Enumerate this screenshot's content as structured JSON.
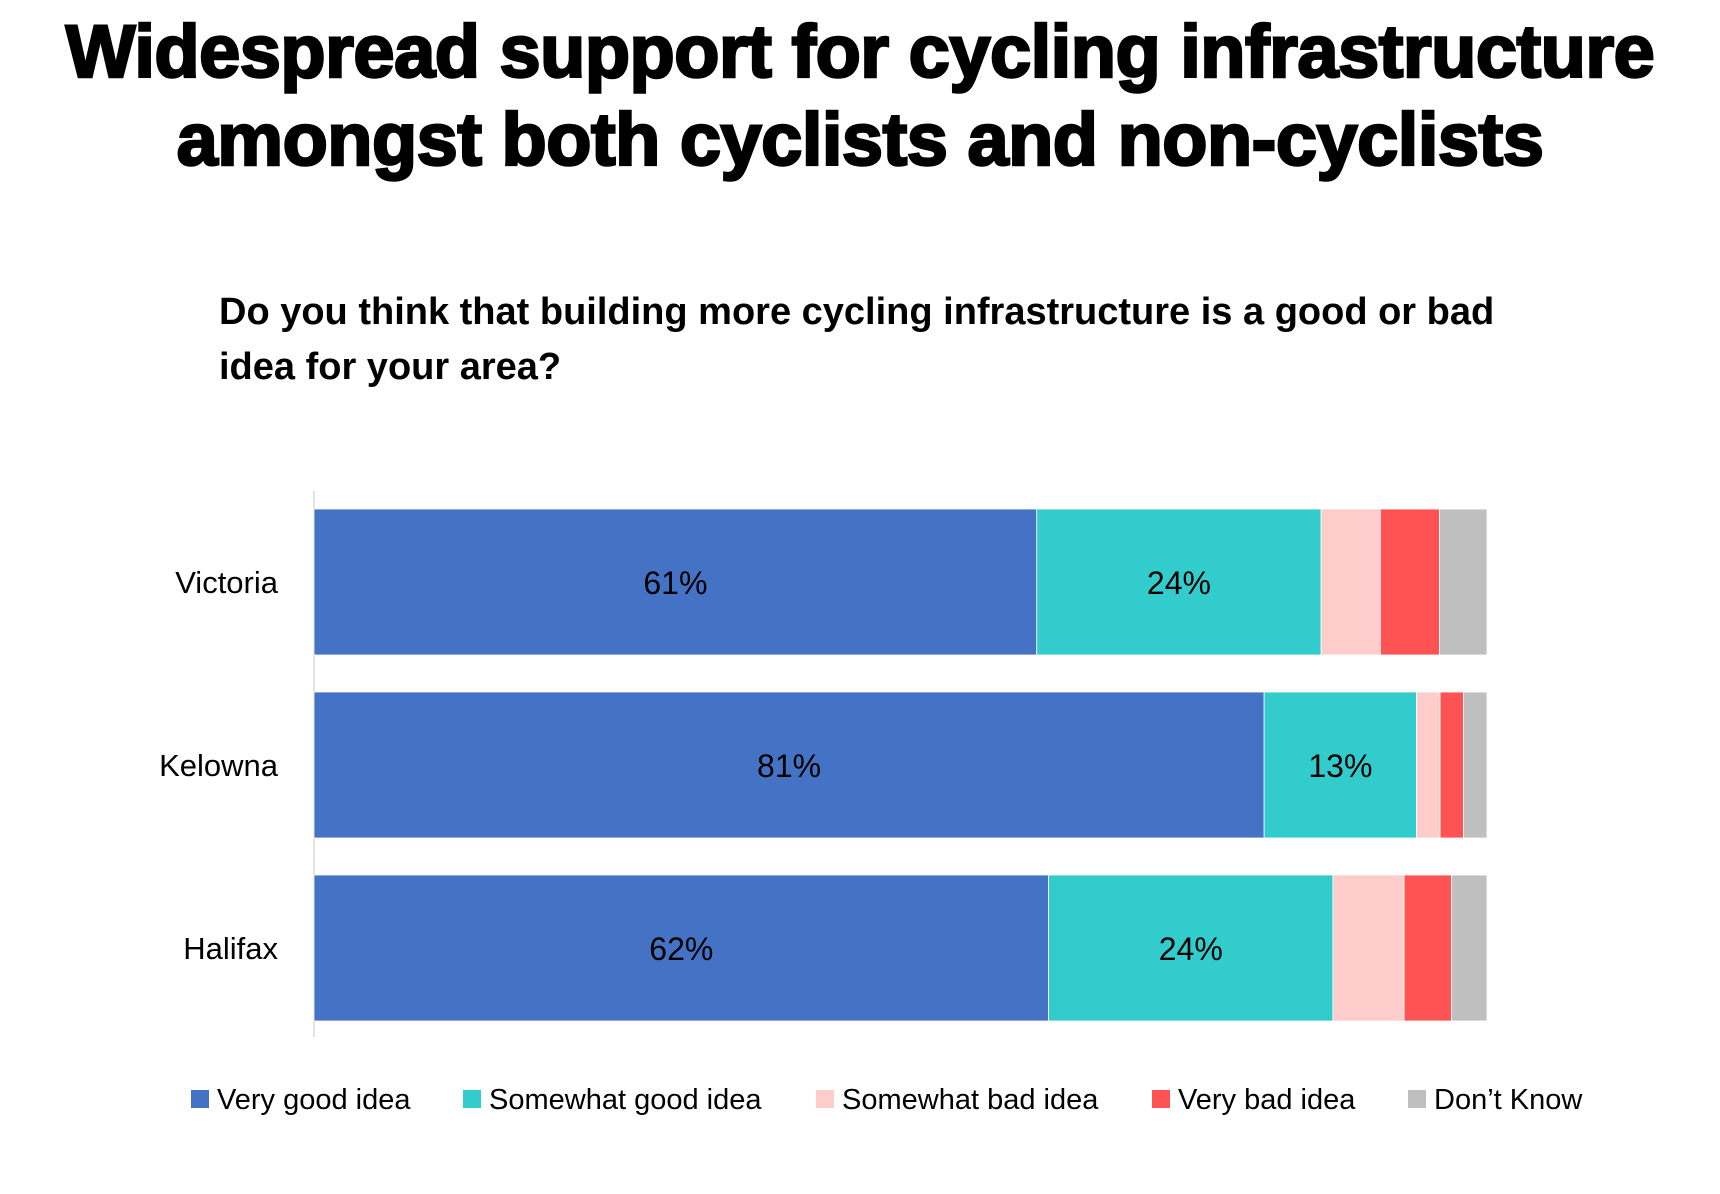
{
  "chart_data": {
    "type": "bar",
    "orientation": "horizontal",
    "stacked": true,
    "title": "Widespread support for cycling infrastructure amongst both cyclists and non-cyclists",
    "title_lines": [
      "Widespread support for cycling infrastructure",
      "amongst both cyclists and non-cyclists"
    ],
    "subtitle": "Do you think that building more cycling infrastructure is a good or bad idea for your area?",
    "categories": [
      "Victoria",
      "Kelowna",
      "Halifax"
    ],
    "series": [
      {
        "name": "Very good idea",
        "color": "#4472C4",
        "values": [
          61,
          81,
          62
        ],
        "labels": [
          "61%",
          "81%",
          "62%"
        ]
      },
      {
        "name": "Somewhat good idea",
        "color": "#33CCCC",
        "values": [
          24,
          13,
          24
        ],
        "labels": [
          "24%",
          "13%",
          "24%"
        ]
      },
      {
        "name": "Somewhat bad idea",
        "color": "#FFCCCC",
        "values": [
          5,
          2,
          6
        ],
        "labels": [
          null,
          null,
          null
        ]
      },
      {
        "name": "Very bad idea",
        "color": "#FF5252",
        "values": [
          5,
          2,
          4
        ],
        "labels": [
          null,
          null,
          null
        ]
      },
      {
        "name": "Don’t Know",
        "color": "#BFBFBF",
        "values": [
          4,
          2,
          3
        ],
        "labels": [
          null,
          null,
          null
        ]
      }
    ],
    "xlim": [
      0,
      100
    ],
    "unit": "%",
    "grid": false,
    "legend_position": "bottom"
  }
}
